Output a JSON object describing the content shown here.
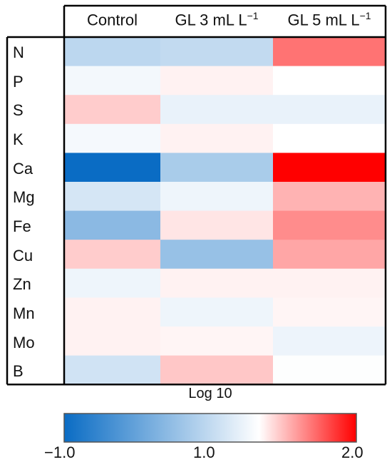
{
  "chart_data": {
    "type": "heatmap",
    "columns": [
      {
        "label": "Control",
        "sup": ""
      },
      {
        "label": "GL 3 mL L",
        "sup": "−1"
      },
      {
        "label": "GL 5 mL L",
        "sup": "−1"
      }
    ],
    "rows": [
      "N",
      "P",
      "S",
      "K",
      "Ca",
      "Mg",
      "Fe",
      "Cu",
      "Zn",
      "Mn",
      "Mo",
      "B"
    ],
    "values": [
      [
        0.45,
        0.5,
        1.55
      ],
      [
        0.9,
        1.05,
        1.0
      ],
      [
        1.2,
        0.82,
        0.82
      ],
      [
        0.92,
        1.05,
        1.0
      ],
      [
        -1.0,
        0.3,
        2.0
      ],
      [
        0.66,
        0.86,
        1.3
      ],
      [
        0.05,
        1.1,
        1.45
      ],
      [
        1.2,
        0.15,
        1.35
      ],
      [
        0.86,
        1.05,
        1.05
      ],
      [
        1.05,
        0.86,
        1.04
      ],
      [
        1.05,
        1.04,
        0.85
      ],
      [
        0.62,
        1.22,
        0.98
      ]
    ],
    "colorbar": {
      "title": "Log 10",
      "min": -1.0,
      "mid": 1.0,
      "max": 2.0,
      "tick_labels": [
        "−1.0",
        "1.0",
        "2.0"
      ],
      "colors": {
        "low": "#0a6cc4",
        "mid": "#ffffff",
        "high": "#ff0000"
      }
    }
  }
}
